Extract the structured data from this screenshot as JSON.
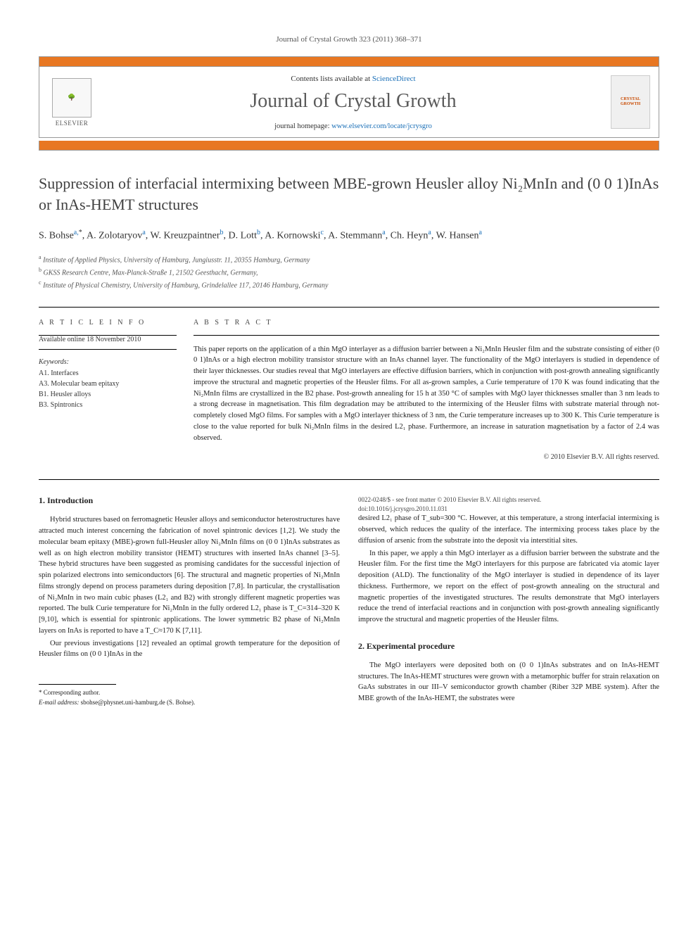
{
  "journal_citation": "Journal of Crystal Growth 323 (2011) 368–371",
  "header": {
    "contents_text": "Contents lists available at ",
    "sciencedirect": "ScienceDirect",
    "journal_name": "Journal of Crystal Growth",
    "homepage_text": "journal homepage: ",
    "homepage_url": "www.elsevier.com/locate/jcrysgro",
    "elsevier": "ELSEVIER",
    "cover_label": "CRYSTAL GROWTH"
  },
  "title": "Suppression of interfacial intermixing between MBE-grown Heusler alloy Ni₂MnIn and (0 0 1)InAs or InAs-HEMT structures",
  "authors_html": "S. Bohse <sup>a,*</sup>, A. Zolotaryov <sup>a</sup>, W. Kreuzpaintner <sup>b</sup>, D. Lott <sup>b</sup>, A. Kornowski <sup>c</sup>, A. Stemmann <sup>a</sup>, Ch. Heyn <sup>a</sup>, W. Hansen <sup>a</sup>",
  "authors": [
    {
      "name": "S. Bohse",
      "sup": "a,*"
    },
    {
      "name": "A. Zolotaryov",
      "sup": "a"
    },
    {
      "name": "W. Kreuzpaintner",
      "sup": "b"
    },
    {
      "name": "D. Lott",
      "sup": "b"
    },
    {
      "name": "A. Kornowski",
      "sup": "c"
    },
    {
      "name": "A. Stemmann",
      "sup": "a"
    },
    {
      "name": "Ch. Heyn",
      "sup": "a"
    },
    {
      "name": "W. Hansen",
      "sup": "a"
    }
  ],
  "affiliations": [
    {
      "sup": "a",
      "text": "Institute of Applied Physics, University of Hamburg, Jungiusstr. 11, 20355 Hamburg, Germany"
    },
    {
      "sup": "b",
      "text": "GKSS Research Centre, Max-Planck-Straße 1, 21502 Geesthacht, Germany,"
    },
    {
      "sup": "c",
      "text": "Institute of Physical Chemistry, University of Hamburg, Grindelallee 117, 20146 Hamburg, Germany"
    }
  ],
  "article_info_label": "A R T I C L E  I N F O",
  "abstract_label": "A B S T R A C T",
  "available_online": "Available online 18 November 2010",
  "keywords_label": "Keywords:",
  "keywords": [
    "A1. Interfaces",
    "A3. Molecular beam epitaxy",
    "B1. Heusler alloys",
    "B3. Spintronics"
  ],
  "abstract": "This paper reports on the application of a thin MgO interlayer as a diffusion barrier between a Ni₂MnIn Heusler film and the substrate consisting of either (0 0 1)InAs or a high electron mobility transistor structure with an InAs channel layer. The functionality of the MgO interlayers is studied in dependence of their layer thicknesses. Our studies reveal that MgO interlayers are effective diffusion barriers, which in conjunction with post-growth annealing significantly improve the structural and magnetic properties of the Heusler films. For all as-grown samples, a Curie temperature of 170 K was found indicating that the Ni₂MnIn films are crystallized in the B2 phase. Post-growth annealing for 15 h at 350 °C of samples with MgO layer thicknesses smaller than 3 nm leads to a strong decrease in magnetisation. This film degradation may be attributed to the intermixing of the Heusler films with substrate material through not-completely closed MgO films. For samples with a MgO interlayer thickness of 3 nm, the Curie temperature increases up to 300 K. This Curie temperature is close to the value reported for bulk Ni₂MnIn films in the desired L2₁ phase. Furthermore, an increase in saturation magnetisation by a factor of 2.4 was observed.",
  "copyright": "© 2010 Elsevier B.V. All rights reserved.",
  "sec1_title": "1.  Introduction",
  "intro_p1": "Hybrid structures based on ferromagnetic Heusler alloys and semiconductor heterostructures have attracted much interest concerning the fabrication of novel spintronic devices [1,2]. We study the molecular beam epitaxy (MBE)-grown full-Heusler alloy Ni₂MnIn films on (0 0 1)InAs substrates as well as on high electron mobility transistor (HEMT) structures with inserted InAs channel [3–5]. These hybrid structures have been suggested as promising candidates for the successful injection of spin polarized electrons into semiconductors [6]. The structural and magnetic properties of Ni₂MnIn films strongly depend on process parameters during deposition [7,8]. In particular, the crystallisation of Ni₂MnIn in two main cubic phases (L2₁ and B2) with strongly different magnetic properties was reported. The bulk Curie temperature for Ni₂MnIn in the fully ordered L2₁ phase is T_C=314–320 K [9,10], which is essential for spintronic applications. The lower symmetric B2 phase of Ni₂MnIn layers on InAs is reported to have a T_C≈170 K [7,11].",
  "intro_p2": "Our previous investigations [12] revealed an optimal growth temperature for the deposition of Heusler films on (0 0 1)InAs in the",
  "intro_p3": "desired L2₁ phase of T_sub=300 °C. However, at this temperature, a strong interfacial intermixing is observed, which reduces the quality of the interface. The intermixing process takes place by the diffusion of arsenic from the substrate into the deposit via interstitial sites.",
  "intro_p4": "In this paper, we apply a thin MgO interlayer as a diffusion barrier between the substrate and the Heusler film. For the first time the MgO interlayers for this purpose are fabricated via atomic layer deposition (ALD). The functionality of the MgO interlayer is studied in dependence of its layer thickness. Furthermore, we report on the effect of post-growth annealing on the structural and magnetic properties of the investigated structures. The results demonstrate that MgO interlayers reduce the trend of interfacial reactions and in conjunction with post-growth annealing significantly improve the structural and magnetic properties of the Heusler films.",
  "sec2_title": "2.  Experimental procedure",
  "exp_p1": "The MgO interlayers were deposited both on (0 0 1)InAs substrates and on InAs-HEMT structures. The InAs-HEMT structures were grown with a metamorphic buffer for strain relaxation on GaAs substrates in our III–V semiconductor growth chamber (Riber 32P MBE system). After the MBE growth of the InAs-HEMT, the substrates were",
  "footnote": {
    "corr": "* Corresponding author.",
    "email_label": "E-mail address: ",
    "email": "sbohse@physnet.uni-hamburg.de",
    "email_tail": " (S. Bohse)."
  },
  "footer": {
    "line1": "0022-0248/$ - see front matter © 2010 Elsevier B.V. All rights reserved.",
    "line2": "doi:10.1016/j.jcrysgro.2010.11.031"
  },
  "colors": {
    "orange": "#e87722",
    "link": "#1a6fb7",
    "title_gray": "#414141",
    "journal_gray": "#5a5a5a"
  }
}
